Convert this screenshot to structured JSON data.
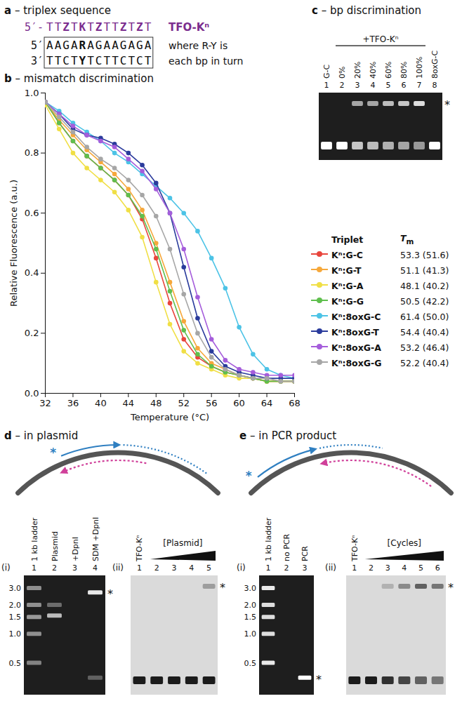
{
  "chart_data": {
    "type": "line",
    "title": "b – mismatch discrimination",
    "x_label": "Temperature (°C)",
    "y_label": "Relative Fluorescence (a.u.)",
    "x": [
      32,
      34,
      36,
      38,
      40,
      42,
      44,
      46,
      48,
      50,
      52,
      54,
      56,
      58,
      60,
      62,
      64,
      66,
      68
    ],
    "xlim": [
      32,
      68
    ],
    "xticks": [
      32,
      36,
      40,
      44,
      48,
      52,
      56,
      60,
      64,
      68
    ],
    "ylim": [
      0,
      1
    ],
    "yticks": [
      {
        "value": 0,
        "label": "0.0"
      },
      {
        "value": 0.2,
        "label": "0.2"
      },
      {
        "value": 0.4,
        "label": "0.4"
      },
      {
        "value": 0.6,
        "label": "0.6"
      },
      {
        "value": 0.8,
        "label": "0.8"
      },
      {
        "value": 1,
        "label": "1.0"
      }
    ],
    "grid": false,
    "legend": "right",
    "legend_headers": [
      "Triplet",
      "Tm"
    ],
    "marker": "circle",
    "series": [
      {
        "name": "Kⁿ:G-C",
        "color": "#e8453c",
        "tm_label": "53.3 (51.6)",
        "values": [
          0.97,
          0.9,
          0.84,
          0.79,
          0.75,
          0.71,
          0.66,
          0.58,
          0.45,
          0.3,
          0.18,
          0.12,
          0.09,
          0.07,
          0.06,
          0.05,
          0.04,
          0.04,
          0.04
        ]
      },
      {
        "name": "Kⁿ:G-T",
        "color": "#f6a83b",
        "tm_label": "51.1 (41.3)",
        "values": [
          0.97,
          0.91,
          0.86,
          0.81,
          0.77,
          0.73,
          0.68,
          0.61,
          0.5,
          0.37,
          0.24,
          0.15,
          0.1,
          0.08,
          0.06,
          0.05,
          0.04,
          0.04,
          0.04
        ]
      },
      {
        "name": "Kⁿ:G-A",
        "color": "#f0df45",
        "tm_label": "48.1 (40.2)",
        "values": [
          0.96,
          0.88,
          0.8,
          0.75,
          0.71,
          0.67,
          0.61,
          0.52,
          0.37,
          0.23,
          0.14,
          0.1,
          0.08,
          0.06,
          0.05,
          0.05,
          0.04,
          0.04,
          0.04
        ]
      },
      {
        "name": "Kⁿ:G-G",
        "color": "#5fbf4d",
        "tm_label": "50.5 (42.2)",
        "values": [
          0.97,
          0.9,
          0.84,
          0.79,
          0.75,
          0.71,
          0.66,
          0.59,
          0.48,
          0.34,
          0.21,
          0.13,
          0.09,
          0.07,
          0.06,
          0.05,
          0.04,
          0.04,
          0.04
        ]
      },
      {
        "name": "Kⁿ:8oxG-C",
        "color": "#4cc3e6",
        "tm_label": "61.4 (50.0)",
        "values": [
          0.97,
          0.94,
          0.9,
          0.87,
          0.84,
          0.8,
          0.77,
          0.73,
          0.69,
          0.65,
          0.6,
          0.54,
          0.45,
          0.35,
          0.22,
          0.13,
          0.08,
          0.06,
          0.05
        ]
      },
      {
        "name": "Kⁿ:8oxG-T",
        "color": "#2a3b9c",
        "tm_label": "54.4 (40.4)",
        "values": [
          0.97,
          0.93,
          0.88,
          0.86,
          0.85,
          0.83,
          0.8,
          0.76,
          0.7,
          0.6,
          0.42,
          0.25,
          0.14,
          0.09,
          0.07,
          0.06,
          0.05,
          0.05,
          0.05
        ]
      },
      {
        "name": "Kⁿ:8oxG-A",
        "color": "#a55ddb",
        "tm_label": "53.2 (46.4)",
        "values": [
          0.97,
          0.93,
          0.89,
          0.86,
          0.84,
          0.82,
          0.78,
          0.74,
          0.68,
          0.6,
          0.48,
          0.32,
          0.18,
          0.11,
          0.08,
          0.07,
          0.06,
          0.06,
          0.06
        ]
      },
      {
        "name": "Kⁿ:8oxG-G",
        "color": "#a6a6a6",
        "tm_label": "52.2 (40.4)",
        "values": [
          0.97,
          0.92,
          0.87,
          0.82,
          0.78,
          0.75,
          0.71,
          0.66,
          0.59,
          0.48,
          0.33,
          0.2,
          0.12,
          0.08,
          0.06,
          0.05,
          0.05,
          0.04,
          0.04
        ]
      }
    ]
  },
  "panel_a": {
    "title": "a – triplex sequence",
    "tfo": {
      "prefix": "5′-",
      "sequence": "TTZTKTZTTZTZT",
      "name": "TFO-Kⁿ"
    },
    "duplex": [
      {
        "prefix": "5′",
        "sequence": "AAGARAGAAGAGA",
        "note": "where R-Y is"
      },
      {
        "prefix": "3′",
        "sequence": "TTCTYTCTTCTCT",
        "note": "each bp in turn"
      }
    ]
  },
  "panel_c": {
    "title": "c – bp discrimination",
    "gel": {
      "group": {
        "label": "+TFO-Kⁿ",
        "from": 2,
        "to": 7
      },
      "annotation": "*",
      "lanes": [
        {
          "number": 1,
          "label": "G-C",
          "free": 1.0,
          "shifted": 0
        },
        {
          "number": 2,
          "label": "0%",
          "free": 1.0,
          "shifted": 0
        },
        {
          "number": 3,
          "label": "20%",
          "free": 0.75,
          "shifted": 0.6
        },
        {
          "number": 4,
          "label": "40%",
          "free": 0.7,
          "shifted": 0.6
        },
        {
          "number": 5,
          "label": "60%",
          "free": 0.65,
          "shifted": 0.7
        },
        {
          "number": 6,
          "label": "80%",
          "free": 0.6,
          "shifted": 0.75
        },
        {
          "number": 7,
          "label": "100%",
          "free": 0.55,
          "shifted": 0.85
        },
        {
          "number": 8,
          "label": "8oxG-C",
          "free": 1.0,
          "shifted": 0
        }
      ]
    }
  },
  "panel_d": {
    "title": "d – in plasmid",
    "schematic_annotation": "*",
    "gels": [
      {
        "tag": "(i)",
        "annotation": "*",
        "ladder": [
          {
            "value": 3,
            "label": "3.0"
          },
          {
            "value": 2,
            "label": "2.0"
          },
          {
            "value": 1.5,
            "label": "1.5"
          },
          {
            "value": 1,
            "label": "1.0"
          },
          {
            "value": 0.5,
            "label": "0.5"
          }
        ],
        "lanes": [
          {
            "number": 1,
            "label": "1 kb ladder",
            "bands": [
              {
                "kb": 3,
                "intensity": 0.5
              },
              {
                "kb": 2,
                "intensity": 0.5
              },
              {
                "kb": 1.5,
                "intensity": 0.55
              },
              {
                "kb": 1,
                "intensity": 0.5
              },
              {
                "kb": 0.5,
                "intensity": 0.45
              }
            ]
          },
          {
            "number": 2,
            "label": "Plasmid",
            "bands": [
              {
                "kb": 2.0,
                "intensity": 0.35
              },
              {
                "kb": 1.55,
                "intensity": 0.7
              }
            ]
          },
          {
            "number": 3,
            "label": "+DpnI",
            "bands": []
          },
          {
            "number": 4,
            "label": "SDM +DpnI",
            "bands": [
              {
                "kb": 2.7,
                "intensity": 0.9,
                "marked": true
              },
              {
                "kb": 0.35,
                "intensity": 0.3
              }
            ]
          }
        ]
      },
      {
        "tag": "(ii)",
        "annotation": "*",
        "wedge": {
          "label": "[Plasmid]",
          "from": 2,
          "to": 5
        },
        "lanes": [
          {
            "number": 1,
            "label": "TFO-Kⁿ",
            "free": 0.95,
            "shifted": 0
          },
          {
            "number": 2,
            "free": 0.95,
            "shifted": 0
          },
          {
            "number": 3,
            "free": 0.95,
            "shifted": 0
          },
          {
            "number": 4,
            "free": 0.95,
            "shifted": 0
          },
          {
            "number": 5,
            "free": 0.95,
            "shifted": 0.3
          }
        ]
      }
    ]
  },
  "panel_e": {
    "title": "e – in PCR product",
    "schematic_annotation": "*",
    "gels": [
      {
        "tag": "(i)",
        "annotation": "*",
        "ladder": [
          {
            "value": 3,
            "label": "3.0"
          },
          {
            "value": 2,
            "label": "2.0"
          },
          {
            "value": 1.5,
            "label": "1.5"
          },
          {
            "value": 1,
            "label": "1.0"
          },
          {
            "value": 0.5,
            "label": "0.5"
          }
        ],
        "lanes": [
          {
            "number": 1,
            "label": "1 kb ladder",
            "bands": [
              {
                "kb": 3,
                "intensity": 0.9
              },
              {
                "kb": 2,
                "intensity": 0.85
              },
              {
                "kb": 1.5,
                "intensity": 0.85
              },
              {
                "kb": 1,
                "intensity": 0.85
              },
              {
                "kb": 0.5,
                "intensity": 0.9
              }
            ]
          },
          {
            "number": 2,
            "label": "no PCR",
            "bands": []
          },
          {
            "number": 3,
            "label": "PCR",
            "bands": [
              {
                "kb": 0.35,
                "intensity": 1.0,
                "marked": true
              }
            ]
          }
        ]
      },
      {
        "tag": "(ii)",
        "annotation": "*",
        "wedge": {
          "label": "[Cycles]",
          "from": 2,
          "to": 6
        },
        "lanes": [
          {
            "number": 1,
            "label": "TFO-Kⁿ",
            "free": 0.95,
            "shifted": 0
          },
          {
            "number": 2,
            "free": 0.95,
            "shifted": 0
          },
          {
            "number": 3,
            "free": 0.85,
            "shifted": 0.2
          },
          {
            "number": 4,
            "free": 0.75,
            "shifted": 0.4
          },
          {
            "number": 5,
            "free": 0.6,
            "shifted": 0.6
          },
          {
            "number": 6,
            "free": 0.5,
            "shifted": 0.5
          }
        ]
      }
    ]
  }
}
